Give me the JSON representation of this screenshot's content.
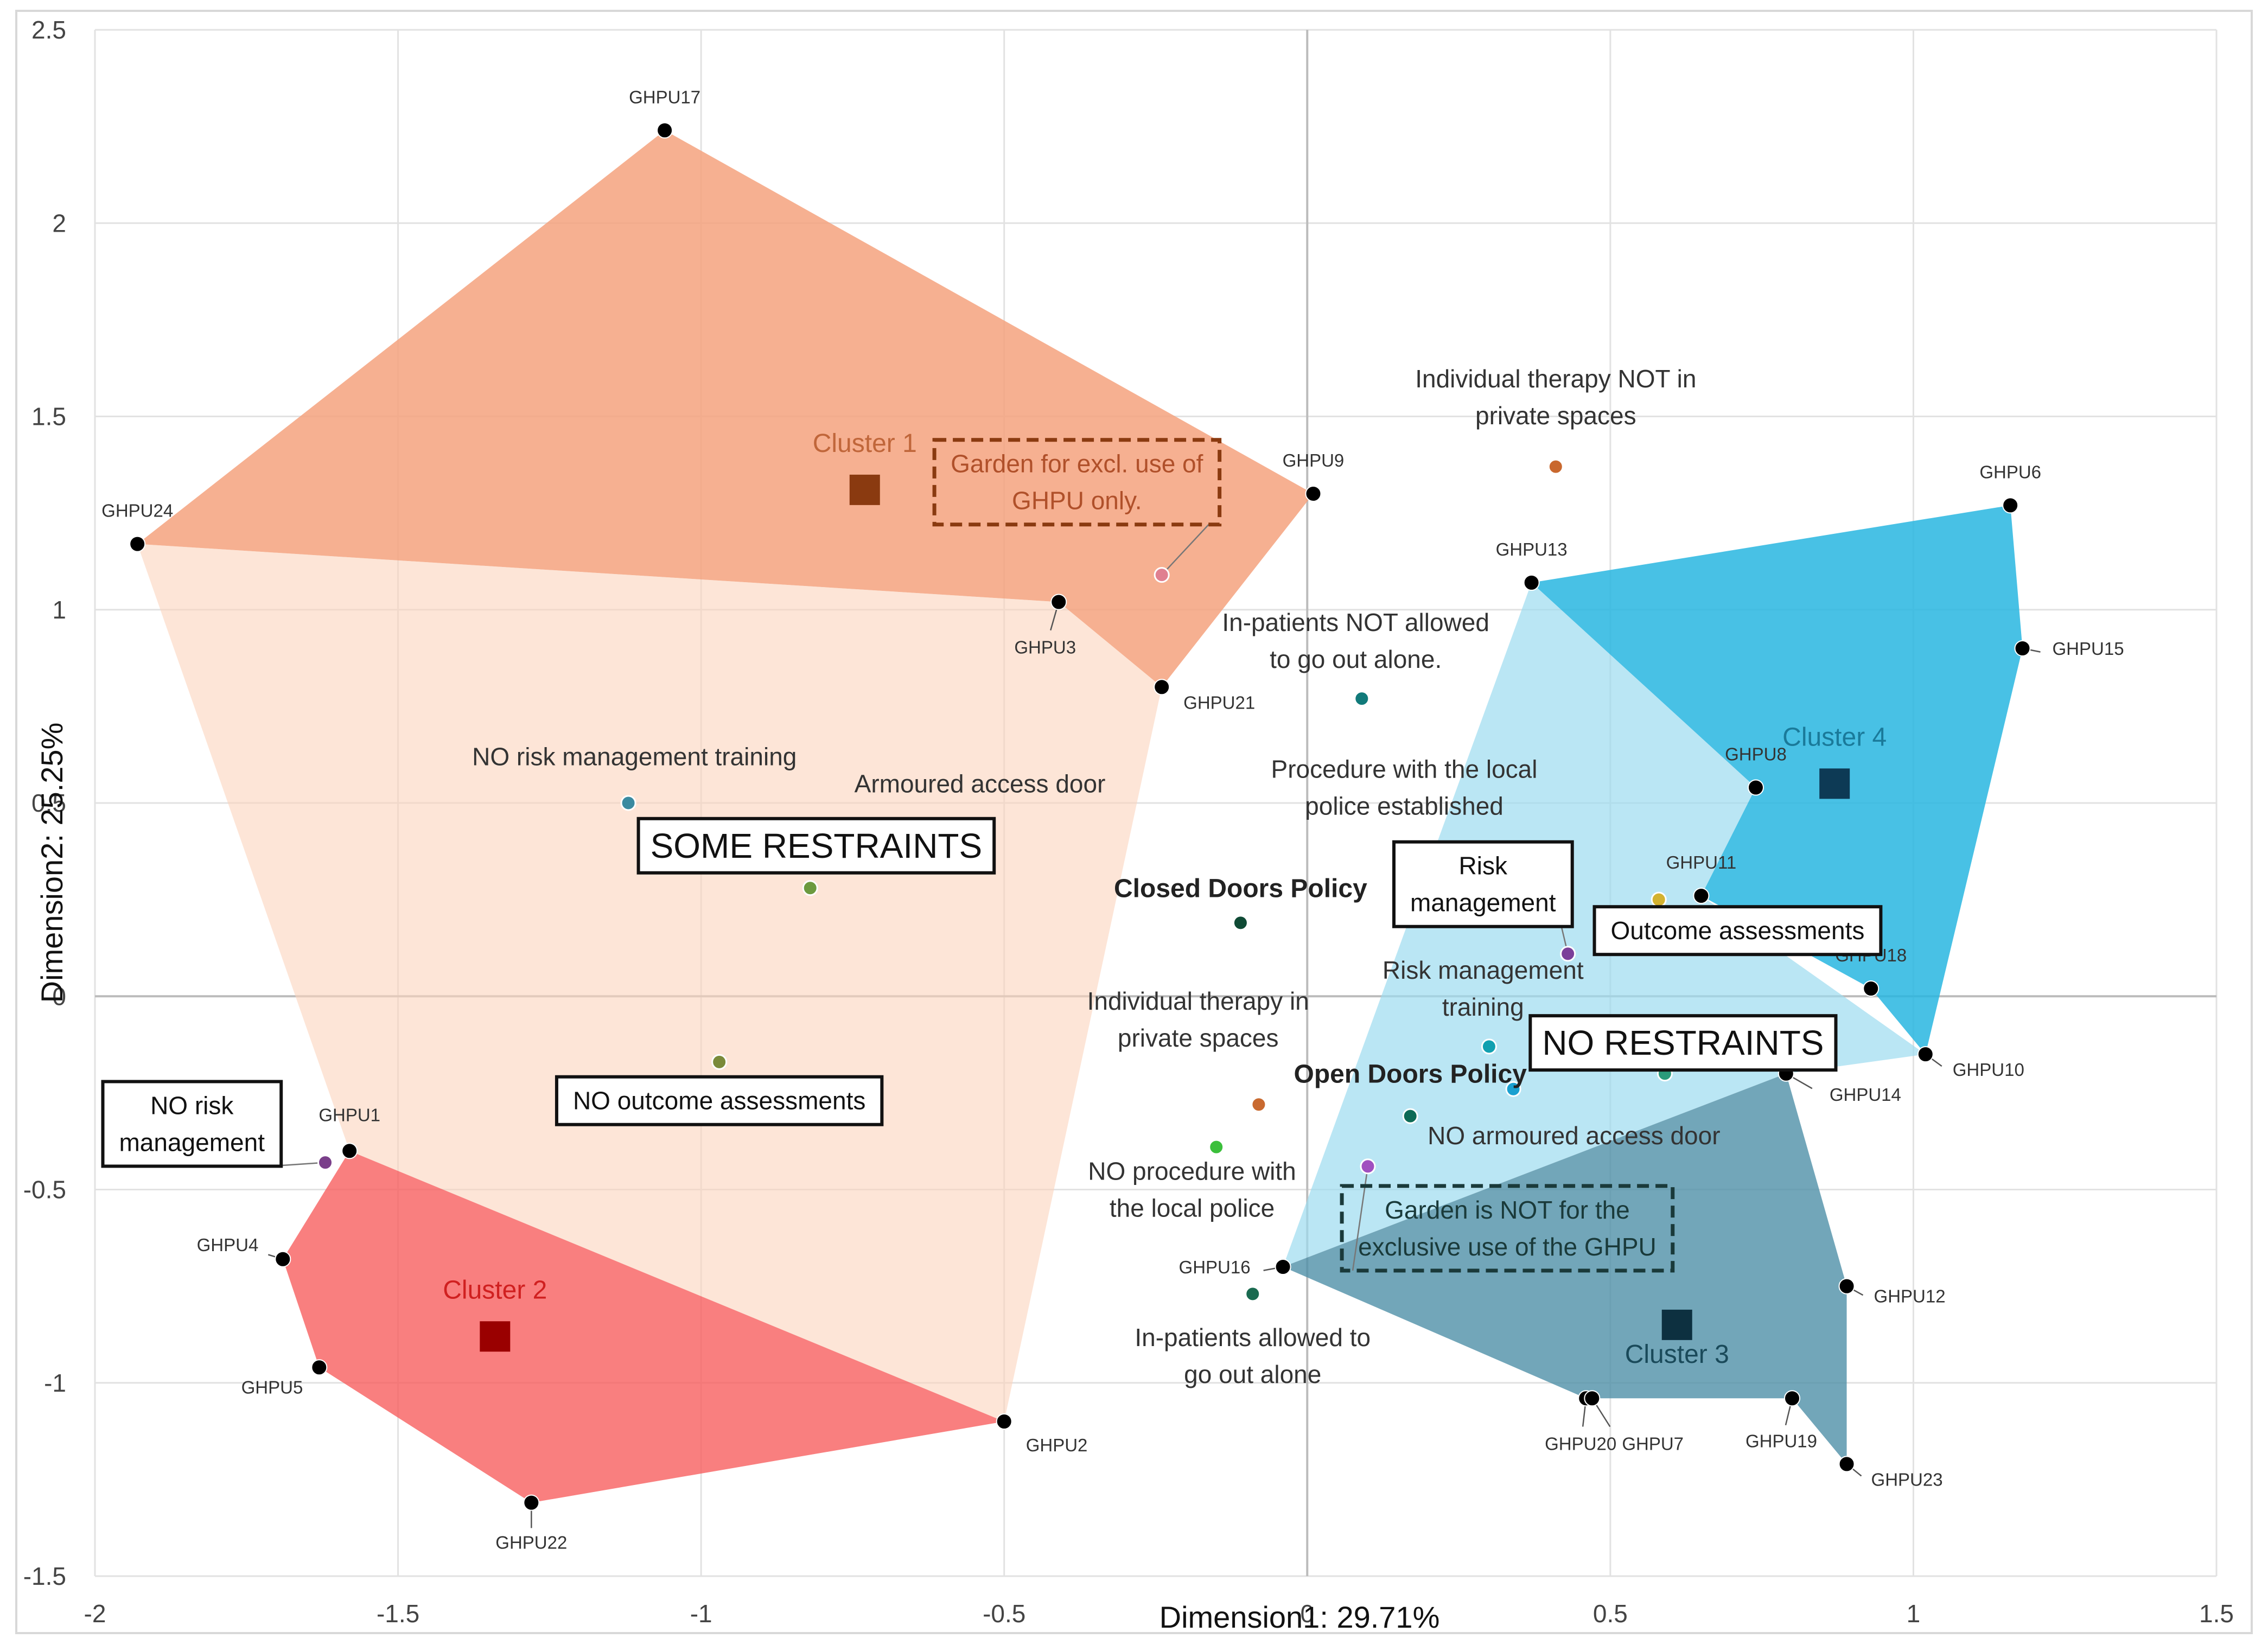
{
  "chart_data": {
    "type": "scatter",
    "xlabel": "Dimension1: 29.71%",
    "ylabel": "Dimension2: 25.25%",
    "xlim": [
      -2,
      1.5
    ],
    "ylim": [
      -1.5,
      2.5
    ],
    "x_ticks": [
      "-2",
      "-1.5",
      "-1",
      "-0.5",
      "0",
      "0.5",
      "1",
      "1.5"
    ],
    "y_ticks": [
      "-1.5",
      "-1",
      "-0.5",
      "0",
      "0.5",
      "1",
      "1.5",
      "2",
      "2.5"
    ],
    "x_tick_values": [
      -2,
      -1.5,
      -1,
      -0.5,
      0,
      0.5,
      1,
      1.5
    ],
    "y_tick_values": [
      -1.5,
      -1,
      -0.5,
      0,
      0.5,
      1,
      1.5,
      2,
      2.5
    ],
    "grid": true,
    "hulls": [
      {
        "name": "Cluster 1 region",
        "color": "#f4a27e",
        "opacity": 0.85,
        "points": [
          "GHPU24",
          "GHPU17",
          "GHPU9",
          "GHPU21",
          "GHPU3"
        ]
      },
      {
        "name": "Some restraints region",
        "color": "#fbd3bd",
        "opacity": 0.6,
        "points": [
          "GHPU24",
          "GHPU3",
          "GHPU21",
          "GHPU2",
          "GHPU1"
        ]
      },
      {
        "name": "Cluster 2 region",
        "color": "#f85f5f",
        "opacity": 0.8,
        "points": [
          "GHPU1",
          "GHPU4",
          "GHPU5",
          "GHPU22",
          "GHPU2"
        ]
      },
      {
        "name": "No restraints region",
        "color": "#9ddcf0",
        "opacity": 0.7,
        "points": [
          "GHPU13",
          "GHPU8",
          "GHPU11",
          "GHPU10",
          "GHPU14",
          "GHPU16"
        ]
      },
      {
        "name": "Cluster 4 region",
        "color": "#28b6e0",
        "opacity": 0.85,
        "points": [
          "GHPU13",
          "GHPU6",
          "GHPU15",
          "GHPU10",
          "GHPU18",
          "GHPU11",
          "GHPU8"
        ]
      },
      {
        "name": "Cluster 3 region",
        "color": "#4f90a8",
        "opacity": 0.8,
        "points": [
          "GHPU16",
          "GHPU14",
          "GHPU12",
          "GHPU23",
          "GHPU19",
          "GHPU7",
          "GHPU20"
        ]
      }
    ],
    "units": [
      {
        "label": "GHPU17",
        "x": -1.06,
        "y": 2.24,
        "lx": 0,
        "ly": -50,
        "anchor": "middle"
      },
      {
        "label": "GHPU24",
        "x": -1.93,
        "y": 1.17,
        "lx": 0,
        "ly": -50,
        "anchor": "middle"
      },
      {
        "label": "GHPU9",
        "x": 0.01,
        "y": 1.3,
        "lx": 0,
        "ly": -50,
        "anchor": "middle"
      },
      {
        "label": "GHPU3",
        "x": -0.41,
        "y": 1.02,
        "lx": -25,
        "ly": 95,
        "anchor": "middle"
      },
      {
        "label": "GHPU21",
        "x": -0.24,
        "y": 0.8,
        "lx": 40,
        "ly": 40,
        "anchor": "start"
      },
      {
        "label": "GHPU1",
        "x": -1.58,
        "y": -0.4,
        "lx": 0,
        "ly": -55,
        "anchor": "middle"
      },
      {
        "label": "GHPU4",
        "x": -1.69,
        "y": -0.68,
        "lx": -45,
        "ly": -15,
        "anchor": "end"
      },
      {
        "label": "GHPU5",
        "x": -1.63,
        "y": -0.96,
        "lx": -30,
        "ly": 48,
        "anchor": "end"
      },
      {
        "label": "GHPU22",
        "x": -1.28,
        "y": -1.31,
        "lx": 0,
        "ly": 85,
        "anchor": "middle"
      },
      {
        "label": "GHPU2",
        "x": -0.5,
        "y": -1.1,
        "lx": 40,
        "ly": 55,
        "anchor": "start"
      },
      {
        "label": "GHPU13",
        "x": 0.37,
        "y": 1.07,
        "lx": 0,
        "ly": -50,
        "anchor": "middle"
      },
      {
        "label": "GHPU6",
        "x": 1.16,
        "y": 1.27,
        "lx": 0,
        "ly": -50,
        "anchor": "middle"
      },
      {
        "label": "GHPU15",
        "x": 1.18,
        "y": 0.9,
        "lx": 55,
        "ly": 12,
        "anchor": "start"
      },
      {
        "label": "GHPU8",
        "x": 0.74,
        "y": 0.54,
        "lx": 0,
        "ly": -50,
        "anchor": "middle"
      },
      {
        "label": "GHPU11",
        "x": 0.65,
        "y": 0.26,
        "lx": 0,
        "ly": -50,
        "anchor": "middle"
      },
      {
        "label": "GHPU18",
        "x": 0.93,
        "y": 0.02,
        "lx": 0,
        "ly": -50,
        "anchor": "middle"
      },
      {
        "label": "GHPU10",
        "x": 1.02,
        "y": -0.15,
        "lx": 50,
        "ly": 40,
        "anchor": "start"
      },
      {
        "label": "GHPU14",
        "x": 0.79,
        "y": -0.2,
        "lx": 80,
        "ly": 50,
        "anchor": "start"
      },
      {
        "label": "GHPU16",
        "x": -0.04,
        "y": -0.7,
        "lx": -60,
        "ly": 12,
        "anchor": "end"
      },
      {
        "label": "GHPU12",
        "x": 0.89,
        "y": -0.75,
        "lx": 50,
        "ly": 30,
        "anchor": "start"
      },
      {
        "label": "GHPU20",
        "x": 0.46,
        "y": -1.04,
        "lx": -10,
        "ly": 95,
        "anchor": "middle"
      },
      {
        "label": "GHPU7",
        "x": 0.47,
        "y": -1.04,
        "lx": 55,
        "ly": 95,
        "anchor": "start"
      },
      {
        "label": "GHPU19",
        "x": 0.8,
        "y": -1.04,
        "lx": -20,
        "ly": 90,
        "anchor": "middle"
      },
      {
        "label": "GHPU23",
        "x": 0.89,
        "y": -1.21,
        "lx": 45,
        "ly": 40,
        "anchor": "start"
      }
    ],
    "variables": [
      {
        "label": "Garden for excl. use of GHPU only.",
        "x": -0.24,
        "y": 1.09,
        "color": "#e08090"
      },
      {
        "label": "Individual therapy NOT in private spaces",
        "x": 0.41,
        "y": 1.37,
        "color": "#c9682e"
      },
      {
        "label": "In-patients NOT allowed to go out alone.",
        "x": 0.09,
        "y": 0.77,
        "color": "#117a7a"
      },
      {
        "label": "NO risk management training",
        "x": -1.12,
        "y": 0.5,
        "color": "#3a8aa0"
      },
      {
        "label": "Armoured access door",
        "x": -0.82,
        "y": 0.28,
        "color": "#6c9a3f"
      },
      {
        "label": "Procedure with the local police established",
        "x": 0.58,
        "y": 0.25,
        "color": "#d3b230"
      },
      {
        "label": "Closed Doors Policy",
        "x": -0.11,
        "y": 0.19,
        "color": "#0f4a35"
      },
      {
        "label": "Risk management",
        "x": 0.43,
        "y": 0.11,
        "color": "#7b3f99"
      },
      {
        "label": "NO outcome assessments",
        "x": -0.97,
        "y": -0.17,
        "color": "#7a8a3a"
      },
      {
        "label": "Outcome assessments",
        "x": 0.59,
        "y": -0.2,
        "color": "#2a9a7a"
      },
      {
        "label": "Risk management training",
        "x": 0.3,
        "y": -0.13,
        "color": "#11a0b0"
      },
      {
        "label": "Open Doors Policy",
        "x": 0.17,
        "y": -0.31,
        "color": "#0d6a55"
      },
      {
        "label": "NO armoured access door",
        "x": 0.34,
        "y": -0.24,
        "color": "#1aa0d0"
      },
      {
        "label": "Individual therapy in private spaces",
        "x": -0.08,
        "y": -0.28,
        "color": "#c96a30"
      },
      {
        "label": "NO procedure with the local police",
        "x": -0.15,
        "y": -0.39,
        "color": "#3bbf3b"
      },
      {
        "label": "Garden is NOT for the exclusive use of the GHPU",
        "x": 0.1,
        "y": -0.44,
        "color": "#a050c0"
      },
      {
        "label": "In-patients allowed to go out alone",
        "x": -0.09,
        "y": -0.77,
        "color": "#1a6a50"
      },
      {
        "label": "NO risk management",
        "x": -1.62,
        "y": -0.43,
        "color": "#7a3f8a"
      }
    ],
    "centroids": [
      {
        "label": "Cluster 1",
        "x": -0.73,
        "y": 1.31,
        "color": "#8a3a10",
        "text_color": "#c0663a"
      },
      {
        "label": "Cluster 2",
        "x": -1.34,
        "y": -0.88,
        "color": "#9a0000",
        "text_color": "#d02020"
      },
      {
        "label": "Cluster 3",
        "x": 0.61,
        "y": -0.85,
        "color": "#0d3040",
        "text_color": "#1a4a5a"
      },
      {
        "label": "Cluster 4",
        "x": 0.87,
        "y": 0.55,
        "color": "#0d3a55",
        "text_color": "#1a7a9a"
      }
    ],
    "annotations": [
      {
        "lines": [
          "Garden for excl. use of",
          "GHPU only."
        ],
        "style": "dashed-box",
        "color": "#8a3a10",
        "text_color": "#b0502a",
        "x": -0.38,
        "y": 1.33,
        "target_x": -0.24,
        "target_y": 1.09
      },
      {
        "lines": [
          "Individual therapy NOT in",
          "private spaces"
        ],
        "style": "text",
        "color": "#333333",
        "x": 0.41,
        "y": 1.55
      },
      {
        "lines": [
          "In-patients NOT allowed",
          "to go out alone."
        ],
        "style": "text",
        "color": "#333333",
        "x": 0.08,
        "y": 0.92
      },
      {
        "lines": [
          "NO risk management training"
        ],
        "style": "text",
        "color": "#333333",
        "x": -1.11,
        "y": 0.62
      },
      {
        "lines": [
          "Armoured access door"
        ],
        "style": "text",
        "color": "#333333",
        "x": -0.54,
        "y": 0.55
      },
      {
        "lines": [
          "SOME RESTRAINTS"
        ],
        "style": "big-box",
        "color": "#111111",
        "x": -0.81,
        "y": 0.39
      },
      {
        "lines": [
          "Procedure with the local",
          "police established"
        ],
        "style": "text",
        "color": "#333333",
        "x": 0.16,
        "y": 0.54
      },
      {
        "lines": [
          "Closed Doors Policy"
        ],
        "style": "bold",
        "color": "#222222",
        "x": -0.11,
        "y": 0.28
      },
      {
        "lines": [
          "Risk",
          "management"
        ],
        "style": "box",
        "color": "#111111",
        "x": 0.29,
        "y": 0.29,
        "target_x": 0.43,
        "target_y": 0.11
      },
      {
        "lines": [
          "Outcome assessments"
        ],
        "style": "box",
        "color": "#111111",
        "x": 0.71,
        "y": 0.17
      },
      {
        "lines": [
          "Risk management",
          "training"
        ],
        "style": "text",
        "color": "#333333",
        "x": 0.29,
        "y": 0.02
      },
      {
        "lines": [
          "NO RESTRAINTS"
        ],
        "style": "big-box",
        "color": "#111111",
        "x": 0.62,
        "y": -0.12
      },
      {
        "lines": [
          "Individual therapy in",
          "private spaces"
        ],
        "style": "text",
        "color": "#333333",
        "x": -0.18,
        "y": -0.06
      },
      {
        "lines": [
          "Open Doors Policy"
        ],
        "style": "bold",
        "color": "#222222",
        "x": 0.17,
        "y": -0.2
      },
      {
        "lines": [
          "NO armoured access door"
        ],
        "style": "text",
        "color": "#333333",
        "x": 0.44,
        "y": -0.36
      },
      {
        "lines": [
          "NO outcome assessments"
        ],
        "style": "box",
        "color": "#111111",
        "x": -0.97,
        "y": -0.27
      },
      {
        "lines": [
          "NO risk",
          "management"
        ],
        "style": "box",
        "color": "#111111",
        "x": -1.84,
        "y": -0.33,
        "target_x": -1.62,
        "target_y": -0.43
      },
      {
        "lines": [
          "NO procedure with",
          "the local police"
        ],
        "style": "text",
        "color": "#333333",
        "x": -0.19,
        "y": -0.5
      },
      {
        "lines": [
          "Garden is NOT for the",
          "exclusive use of the GHPU"
        ],
        "style": "dashed-box",
        "color": "#1a3a3a",
        "text_color": "#1a3a3a",
        "x": 0.33,
        "y": -0.6,
        "target_x": 0.1,
        "target_y": -0.44
      },
      {
        "lines": [
          "In-patients allowed to",
          "go out alone"
        ],
        "style": "text",
        "color": "#333333",
        "x": -0.09,
        "y": -0.93
      }
    ]
  }
}
